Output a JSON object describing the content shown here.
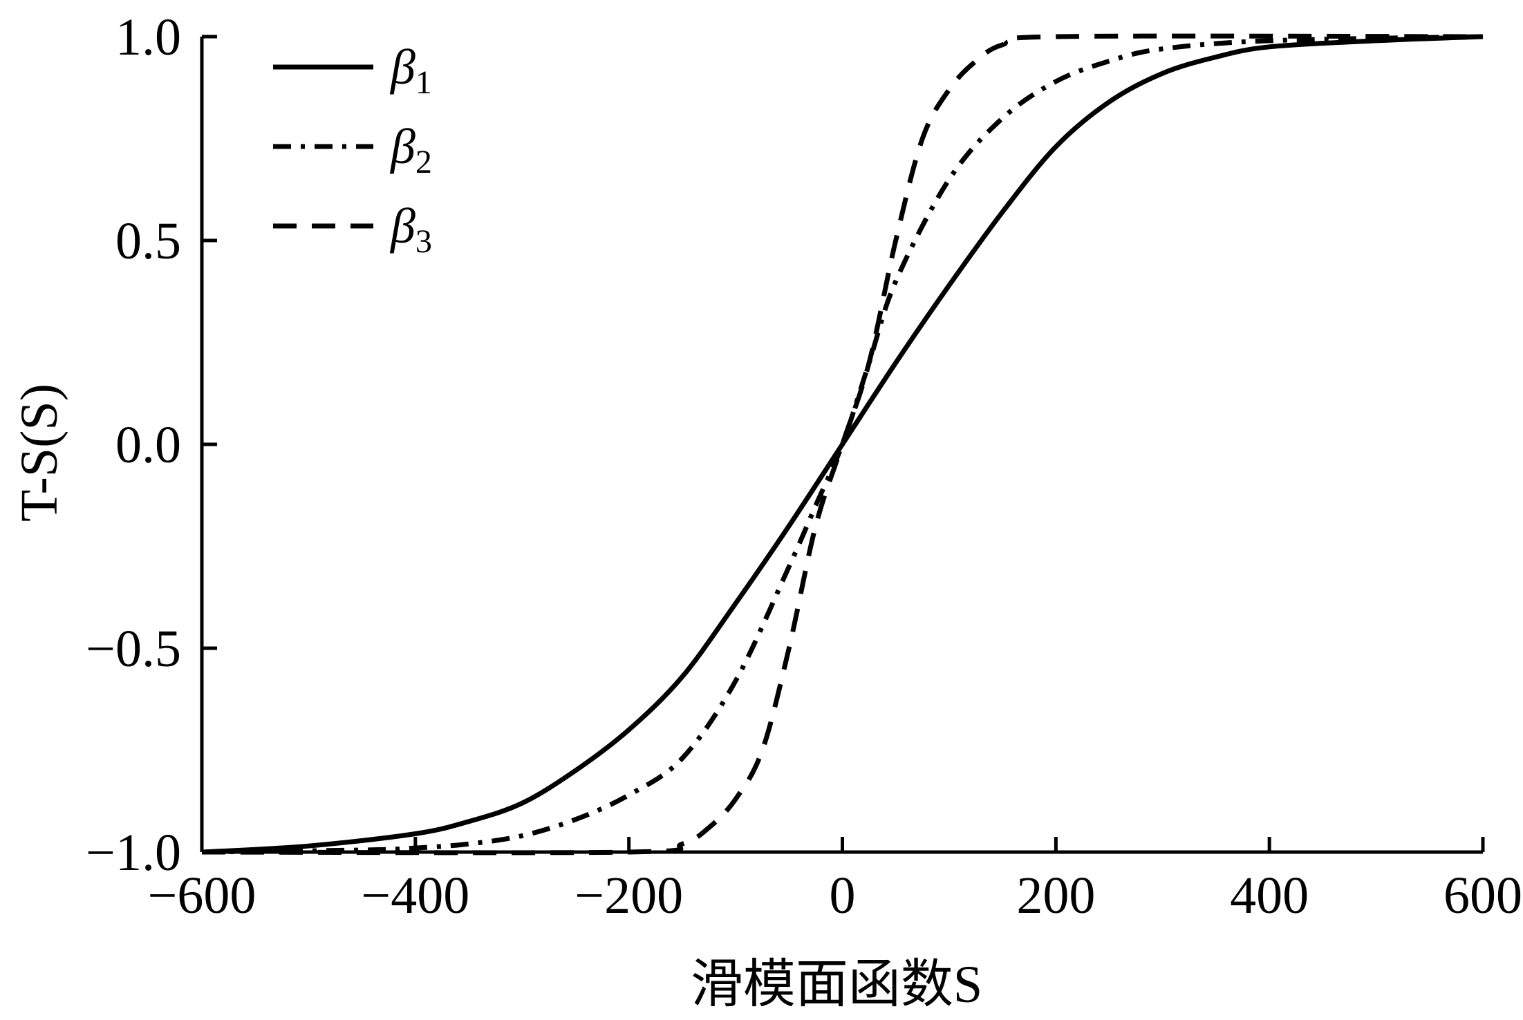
{
  "chart_data": {
    "type": "line",
    "title": "",
    "xlabel": "滑模面函数S",
    "ylabel": "T-S(S)",
    "xlim": [
      -600,
      600
    ],
    "ylim": [
      -1.0,
      1.0
    ],
    "x_ticks": [
      -600,
      -400,
      -200,
      0,
      200,
      400,
      600
    ],
    "x_tick_labels": [
      "−600",
      "−400",
      "−200",
      "0",
      "200",
      "400",
      "600"
    ],
    "y_ticks": [
      1.0,
      0.5,
      0.0,
      -0.5,
      -1.0
    ],
    "y_tick_labels": [
      "1.0",
      "0.5",
      "0.0",
      "−0.5",
      "−1.0"
    ],
    "grid": false,
    "legend_position": "top-left",
    "series": [
      {
        "name": "β1",
        "style": "solid",
        "x": [
          -600,
          -500,
          -400,
          -350,
          -300,
          -250,
          -200,
          -150,
          -100,
          -50,
          0,
          50,
          100,
          150,
          200,
          250,
          300,
          350,
          400,
          500,
          600
        ],
        "y": [
          -1.0,
          -0.985,
          -0.955,
          -0.925,
          -0.88,
          -0.8,
          -0.7,
          -0.57,
          -0.39,
          -0.2,
          0.0,
          0.2,
          0.39,
          0.57,
          0.73,
          0.84,
          0.91,
          0.95,
          0.975,
          0.99,
          1.0
        ]
      },
      {
        "name": "β2",
        "style": "dash-dot",
        "x": [
          -600,
          -450,
          -400,
          -350,
          -300,
          -250,
          -200,
          -150,
          -100,
          -50,
          -25,
          0,
          25,
          50,
          100,
          150,
          200,
          250,
          300,
          400,
          600
        ],
        "y": [
          -1.0,
          -0.995,
          -0.99,
          -0.98,
          -0.96,
          -0.92,
          -0.86,
          -0.77,
          -0.58,
          -0.3,
          -0.15,
          0.0,
          0.2,
          0.4,
          0.65,
          0.8,
          0.89,
          0.94,
          0.97,
          0.99,
          1.0
        ]
      },
      {
        "name": "β3",
        "style": "dashed",
        "x": [
          -600,
          -200,
          -150,
          -125,
          -100,
          -75,
          -50,
          -25,
          0,
          25,
          50,
          75,
          100,
          125,
          150,
          200,
          600
        ],
        "y": [
          -1.0,
          -1.0,
          -0.98,
          -0.94,
          -0.87,
          -0.75,
          -0.5,
          -0.2,
          0.0,
          0.2,
          0.5,
          0.75,
          0.87,
          0.94,
          0.98,
          1.0,
          1.0
        ]
      }
    ]
  },
  "legend": [
    {
      "symbol": "β",
      "sub": "1"
    },
    {
      "symbol": "β",
      "sub": "2"
    },
    {
      "symbol": "β",
      "sub": "3"
    }
  ]
}
